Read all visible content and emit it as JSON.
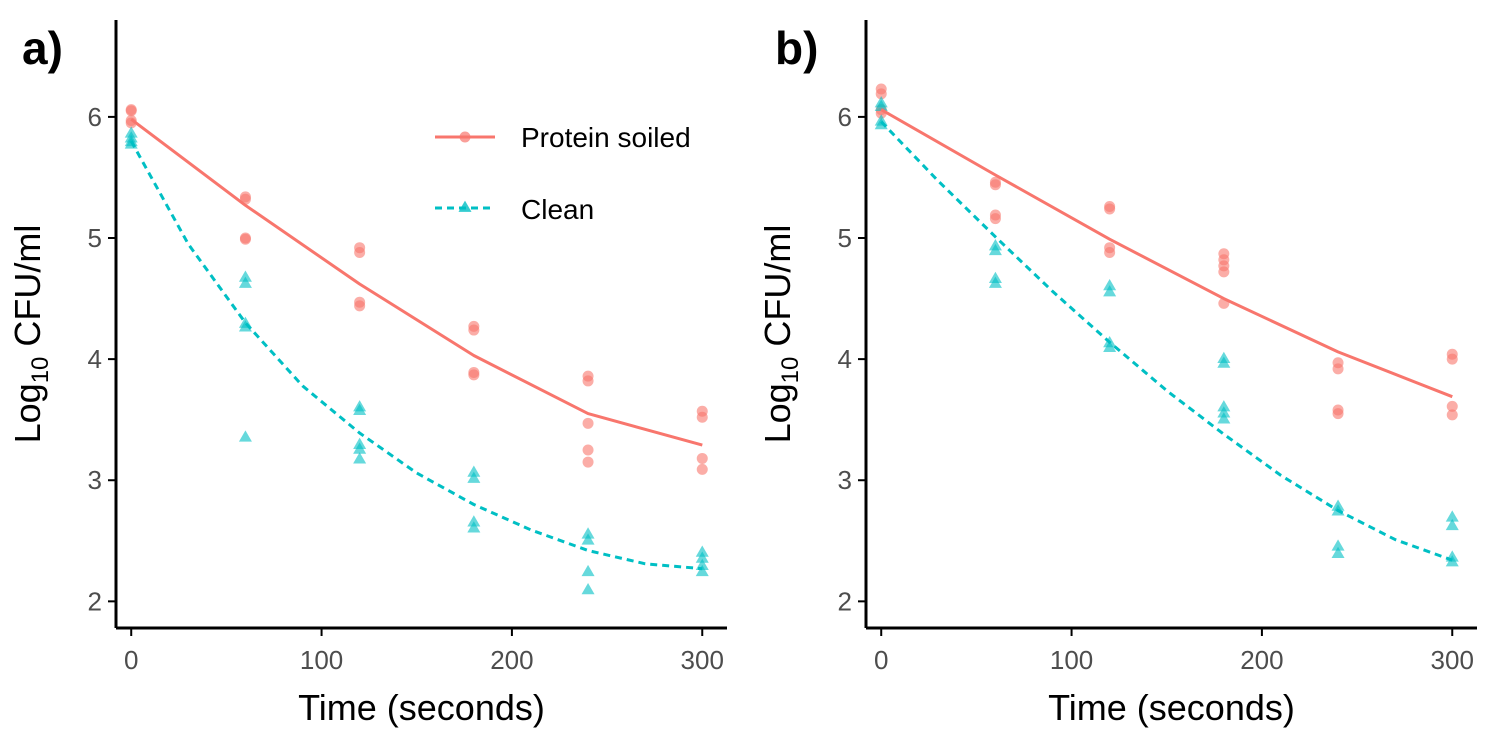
{
  "colors": {
    "protein": "#F8766D",
    "clean": "#00BFC4",
    "axis": "#000000",
    "tick_label": "#4D4D4D"
  },
  "legend": {
    "placement": "top-right inside panel a",
    "items": [
      {
        "label": "Protein soiled",
        "series": "protein",
        "line": "solid",
        "marker": "circle"
      },
      {
        "label": "Clean",
        "series": "clean",
        "line": "dashed",
        "marker": "triangle"
      }
    ]
  },
  "chart_data": [
    {
      "panel_label": "a)",
      "type": "scatter",
      "xlabel": "Time (seconds)",
      "ylabel_main": "Log",
      "ylabel_sub": "10",
      "ylabel_rest": " CFU/ml",
      "xlim": [
        -8,
        313
      ],
      "ylim": [
        1.78,
        6.8
      ],
      "xticks": [
        0,
        100,
        200,
        300
      ],
      "yticks": [
        2,
        3,
        4,
        5,
        6
      ],
      "grid": false,
      "series": [
        {
          "key": "protein",
          "name": "Protein soiled",
          "points": [
            [
              0,
              6.06
            ],
            [
              0,
              6.05
            ],
            [
              0,
              5.97
            ],
            [
              0,
              5.95
            ],
            [
              60,
              5.34
            ],
            [
              60,
              5.32
            ],
            [
              60,
              5.0
            ],
            [
              60,
              4.99
            ],
            [
              120,
              4.92
            ],
            [
              120,
              4.88
            ],
            [
              120,
              4.47
            ],
            [
              120,
              4.44
            ],
            [
              180,
              4.27
            ],
            [
              180,
              4.24
            ],
            [
              180,
              3.89
            ],
            [
              180,
              3.87
            ],
            [
              240,
              3.86
            ],
            [
              240,
              3.82
            ],
            [
              240,
              3.47
            ],
            [
              240,
              3.25
            ],
            [
              240,
              3.15
            ],
            [
              300,
              3.57
            ],
            [
              300,
              3.52
            ],
            [
              300,
              3.18
            ],
            [
              300,
              3.09
            ]
          ],
          "fit": [
            [
              0,
              5.98
            ],
            [
              60,
              5.27
            ],
            [
              120,
              4.62
            ],
            [
              180,
              4.03
            ],
            [
              240,
              3.55
            ],
            [
              300,
              3.29
            ]
          ]
        },
        {
          "key": "clean",
          "name": "Clean",
          "points": [
            [
              0,
              5.86
            ],
            [
              0,
              5.82
            ],
            [
              0,
              5.79
            ],
            [
              0,
              5.77
            ],
            [
              60,
              4.67
            ],
            [
              60,
              4.62
            ],
            [
              60,
              4.29
            ],
            [
              60,
              4.26
            ],
            [
              60,
              3.35
            ],
            [
              120,
              3.6
            ],
            [
              120,
              3.57
            ],
            [
              120,
              3.29
            ],
            [
              120,
              3.25
            ],
            [
              120,
              3.17
            ],
            [
              180,
              3.06
            ],
            [
              180,
              3.01
            ],
            [
              180,
              2.65
            ],
            [
              180,
              2.6
            ],
            [
              240,
              2.55
            ],
            [
              240,
              2.5
            ],
            [
              240,
              2.24
            ],
            [
              240,
              2.09
            ],
            [
              300,
              2.4
            ],
            [
              300,
              2.35
            ],
            [
              300,
              2.29
            ],
            [
              300,
              2.24
            ]
          ],
          "fit": [
            [
              0,
              5.8
            ],
            [
              30,
              4.95
            ],
            [
              60,
              4.3
            ],
            [
              90,
              3.78
            ],
            [
              120,
              3.39
            ],
            [
              150,
              3.06
            ],
            [
              180,
              2.8
            ],
            [
              210,
              2.59
            ],
            [
              240,
              2.42
            ],
            [
              270,
              2.31
            ],
            [
              300,
              2.27
            ]
          ]
        }
      ]
    },
    {
      "panel_label": "b)",
      "type": "scatter",
      "xlabel": "Time (seconds)",
      "ylabel_main": "Log",
      "ylabel_sub": "10",
      "ylabel_rest": " CFU/ml",
      "xlim": [
        -8,
        313
      ],
      "ylim": [
        1.78,
        6.8
      ],
      "xticks": [
        0,
        100,
        200,
        300
      ],
      "yticks": [
        2,
        3,
        4,
        5,
        6
      ],
      "grid": false,
      "series": [
        {
          "key": "protein",
          "name": "Protein soiled",
          "points": [
            [
              0,
              6.23
            ],
            [
              0,
              6.19
            ],
            [
              0,
              6.06
            ],
            [
              0,
              6.03
            ],
            [
              60,
              5.46
            ],
            [
              60,
              5.44
            ],
            [
              60,
              5.19
            ],
            [
              60,
              5.16
            ],
            [
              120,
              5.26
            ],
            [
              120,
              5.24
            ],
            [
              120,
              4.92
            ],
            [
              120,
              4.88
            ],
            [
              180,
              4.87
            ],
            [
              180,
              4.82
            ],
            [
              180,
              4.77
            ],
            [
              180,
              4.72
            ],
            [
              180,
              4.46
            ],
            [
              240,
              3.97
            ],
            [
              240,
              3.92
            ],
            [
              240,
              3.58
            ],
            [
              240,
              3.55
            ],
            [
              300,
              4.04
            ],
            [
              300,
              4.0
            ],
            [
              300,
              3.61
            ],
            [
              300,
              3.54
            ]
          ],
          "fit": [
            [
              0,
              6.06
            ],
            [
              60,
              5.52
            ],
            [
              120,
              4.99
            ],
            [
              180,
              4.5
            ],
            [
              240,
              4.06
            ],
            [
              300,
              3.69
            ]
          ]
        },
        {
          "key": "clean",
          "name": "Clean",
          "points": [
            [
              0,
              6.11
            ],
            [
              0,
              6.08
            ],
            [
              0,
              5.96
            ],
            [
              0,
              5.93
            ],
            [
              60,
              4.93
            ],
            [
              60,
              4.89
            ],
            [
              60,
              4.66
            ],
            [
              60,
              4.62
            ],
            [
              120,
              4.6
            ],
            [
              120,
              4.55
            ],
            [
              120,
              4.13
            ],
            [
              120,
              4.09
            ],
            [
              180,
              4.0
            ],
            [
              180,
              3.96
            ],
            [
              180,
              3.6
            ],
            [
              180,
              3.55
            ],
            [
              180,
              3.5
            ],
            [
              240,
              2.78
            ],
            [
              240,
              2.74
            ],
            [
              240,
              2.45
            ],
            [
              240,
              2.39
            ],
            [
              300,
              2.69
            ],
            [
              300,
              2.62
            ],
            [
              300,
              2.36
            ],
            [
              300,
              2.32
            ]
          ],
          "fit": [
            [
              0,
              5.96
            ],
            [
              30,
              5.47
            ],
            [
              60,
              5.01
            ],
            [
              90,
              4.56
            ],
            [
              120,
              4.14
            ],
            [
              150,
              3.74
            ],
            [
              180,
              3.38
            ],
            [
              210,
              3.04
            ],
            [
              240,
              2.75
            ],
            [
              270,
              2.51
            ],
            [
              300,
              2.34
            ]
          ]
        }
      ]
    }
  ]
}
